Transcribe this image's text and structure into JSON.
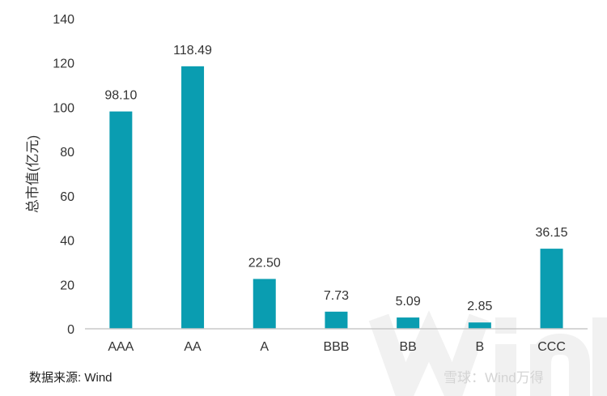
{
  "chart_data": {
    "type": "bar",
    "categories": [
      "AAA",
      "AA",
      "A",
      "BBB",
      "BB",
      "B",
      "CCC"
    ],
    "values": [
      98.1,
      118.49,
      22.5,
      7.73,
      5.09,
      2.85,
      36.15
    ],
    "data_labels": [
      "98.10",
      "118.49",
      "22.50",
      "7.73",
      "5.09",
      "2.85",
      "36.15"
    ],
    "title": "",
    "xlabel": "",
    "ylabel": "总市值(亿元)",
    "ylim": [
      0,
      140
    ],
    "yticks": [
      0,
      20,
      40,
      60,
      80,
      100,
      120,
      140
    ],
    "grid": false,
    "legend": "none",
    "bar_color": "#0a9db1"
  },
  "source": "数据来源: Wind",
  "watermark": {
    "big": "Wind",
    "small": "雪球：Wind万得"
  }
}
